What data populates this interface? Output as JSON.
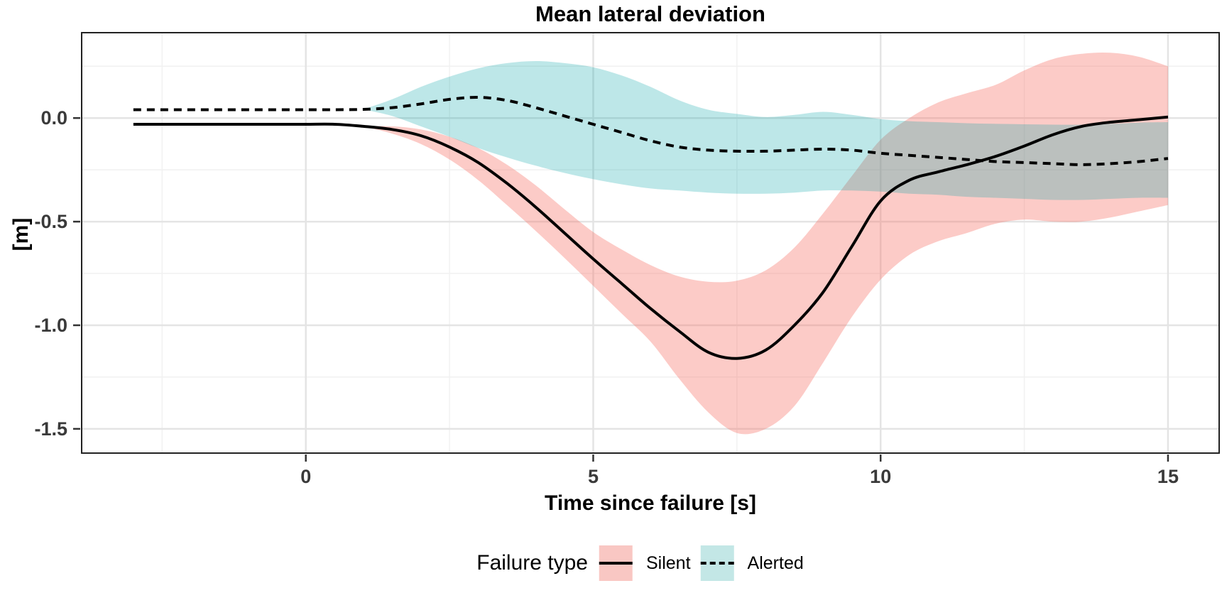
{
  "title": "Mean lateral deviation",
  "axes": {
    "x": {
      "label": "Time since failure [s]",
      "tick_labels": [
        "0",
        "5",
        "10",
        "15"
      ],
      "tick_values": [
        0,
        5,
        10,
        15
      ],
      "minor_values": [
        -2.5,
        2.5,
        7.5,
        12.5
      ],
      "range": [
        -3.9,
        15.89
      ]
    },
    "y": {
      "label": "[m]",
      "tick_labels": [
        "0.0",
        "-0.5",
        "-1.0",
        "-1.5"
      ],
      "tick_values": [
        0,
        -0.5,
        -1.0,
        -1.5
      ],
      "minor_values": [
        0.25,
        -0.25,
        -0.75,
        -1.25
      ],
      "range": [
        -1.617,
        0.412
      ]
    }
  },
  "legend": {
    "title": "Failure type",
    "items": [
      {
        "label": "Silent",
        "fill": "#F9C7C3",
        "line_style": "solid"
      },
      {
        "label": "Alerted",
        "fill": "#C3E7E6",
        "line_style": "dashed"
      }
    ]
  },
  "colors": {
    "silent_ribbon": "rgba(248,118,109,0.38)",
    "alerted_ribbon": "rgba(0,163,168,0.26)",
    "line": "#000000",
    "grid_major": "#E4E4E4",
    "grid_minor": "#F1F1F1",
    "panel_border": "#222222",
    "tick_mark": "#333333"
  },
  "chart_data": {
    "type": "line",
    "title": "Mean lateral deviation",
    "xlabel": "Time since failure [s]",
    "ylabel": "[m]",
    "x_range": [
      -3.9,
      15.89
    ],
    "y_range": [
      -1.617,
      0.412
    ],
    "grid": "on",
    "legend_position": "bottom",
    "x": [
      -3,
      -2.5,
      -2,
      -1.5,
      -1,
      -0.5,
      0,
      0.5,
      1,
      1.5,
      2,
      2.5,
      3,
      3.5,
      4,
      4.5,
      5,
      5.5,
      6,
      6.5,
      7,
      7.5,
      8,
      8.5,
      9,
      9.5,
      10,
      10.5,
      11,
      11.5,
      12,
      12.5,
      13,
      13.5,
      14,
      14.5,
      15
    ],
    "series": [
      {
        "name": "Silent",
        "line_style": "solid",
        "y": [
          -0.03,
          -0.03,
          -0.03,
          -0.03,
          -0.03,
          -0.03,
          -0.03,
          -0.03,
          -0.04,
          -0.055,
          -0.085,
          -0.14,
          -0.215,
          -0.315,
          -0.43,
          -0.555,
          -0.68,
          -0.8,
          -0.92,
          -1.03,
          -1.13,
          -1.16,
          -1.12,
          -1.0,
          -0.84,
          -0.62,
          -0.4,
          -0.3,
          -0.26,
          -0.225,
          -0.185,
          -0.135,
          -0.08,
          -0.04,
          -0.02,
          -0.008,
          0.005
        ],
        "ribbon": {
          "x": [
            1,
            1.5,
            2,
            2.5,
            3,
            3.5,
            4,
            4.5,
            5,
            5.5,
            6,
            6.5,
            7,
            7.5,
            8,
            8.5,
            9,
            9.5,
            10,
            10.5,
            11,
            11.5,
            12,
            12.5,
            13,
            13.5,
            14,
            14.5,
            15
          ],
          "lower": [
            -0.04,
            -0.075,
            -0.125,
            -0.2,
            -0.3,
            -0.42,
            -0.545,
            -0.675,
            -0.81,
            -0.945,
            -1.08,
            -1.26,
            -1.42,
            -1.52,
            -1.5,
            -1.39,
            -1.18,
            -0.96,
            -0.78,
            -0.66,
            -0.595,
            -0.555,
            -0.51,
            -0.49,
            -0.5,
            -0.5,
            -0.48,
            -0.45,
            -0.42
          ],
          "upper": [
            -0.04,
            -0.04,
            -0.055,
            -0.09,
            -0.145,
            -0.225,
            -0.325,
            -0.44,
            -0.55,
            -0.635,
            -0.71,
            -0.765,
            -0.79,
            -0.785,
            -0.735,
            -0.625,
            -0.46,
            -0.28,
            -0.105,
            0.0,
            0.075,
            0.12,
            0.16,
            0.23,
            0.285,
            0.31,
            0.315,
            0.295,
            0.25
          ]
        }
      },
      {
        "name": "Alerted",
        "line_style": "dashed",
        "y": [
          0.04,
          0.04,
          0.04,
          0.04,
          0.04,
          0.04,
          0.04,
          0.04,
          0.042,
          0.05,
          0.068,
          0.09,
          0.1,
          0.085,
          0.05,
          0.01,
          -0.03,
          -0.07,
          -0.11,
          -0.14,
          -0.155,
          -0.16,
          -0.16,
          -0.155,
          -0.15,
          -0.155,
          -0.17,
          -0.18,
          -0.19,
          -0.2,
          -0.21,
          -0.215,
          -0.22,
          -0.225,
          -0.22,
          -0.21,
          -0.195
        ],
        "ribbon": {
          "x": [
            1,
            1.5,
            2,
            2.5,
            3,
            3.5,
            4,
            4.5,
            5,
            5.5,
            6,
            6.5,
            7,
            7.5,
            8,
            8.5,
            9,
            9.5,
            10,
            10.5,
            11,
            11.5,
            12,
            12.5,
            13,
            13.5,
            14,
            14.5,
            15
          ],
          "lower": [
            0.042,
            0.01,
            -0.04,
            -0.09,
            -0.145,
            -0.19,
            -0.23,
            -0.265,
            -0.295,
            -0.32,
            -0.34,
            -0.35,
            -0.36,
            -0.365,
            -0.365,
            -0.36,
            -0.35,
            -0.35,
            -0.355,
            -0.365,
            -0.37,
            -0.38,
            -0.385,
            -0.39,
            -0.395,
            -0.395,
            -0.39,
            -0.385,
            -0.385
          ],
          "upper": [
            0.042,
            0.09,
            0.15,
            0.2,
            0.24,
            0.265,
            0.275,
            0.265,
            0.245,
            0.205,
            0.15,
            0.085,
            0.04,
            0.02,
            0.005,
            0.015,
            0.03,
            0.015,
            -0.005,
            -0.015,
            -0.02,
            -0.025,
            -0.028,
            -0.03,
            -0.032,
            -0.032,
            -0.028,
            -0.022,
            -0.02
          ]
        }
      }
    ]
  }
}
